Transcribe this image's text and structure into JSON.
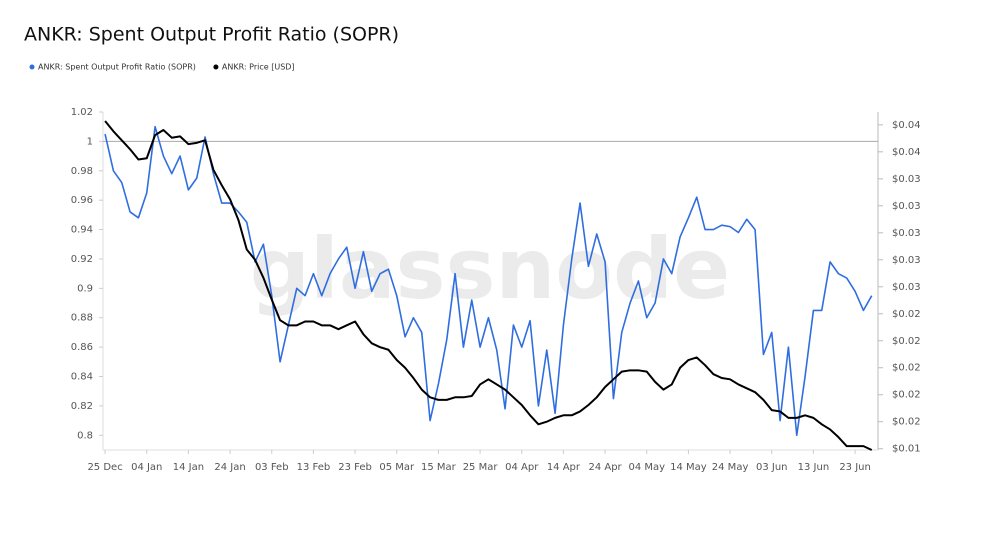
{
  "chart_data": {
    "type": "line",
    "title": "ANKR: Spent Output Profit Ratio (SOPR)",
    "watermark": "glassnode",
    "x": [
      0,
      2,
      4,
      6,
      8,
      10,
      12,
      14,
      16,
      18,
      20,
      22,
      24,
      26,
      28,
      30,
      32,
      34,
      36,
      38,
      40,
      42,
      44,
      46,
      48,
      50,
      52,
      54,
      56,
      58,
      60,
      62,
      64,
      66,
      68,
      70,
      72,
      74,
      76,
      78,
      80,
      82,
      84,
      86,
      88,
      90,
      92,
      94,
      96,
      98,
      100,
      102,
      104,
      106,
      108,
      110,
      112,
      114,
      116,
      118,
      120,
      122,
      124,
      126,
      128,
      130,
      132,
      134,
      136,
      138,
      140,
      142,
      144,
      146,
      148,
      150,
      152,
      154,
      156,
      158,
      160,
      162,
      164,
      166,
      168,
      170,
      172,
      174,
      176,
      178,
      180,
      182,
      184
    ],
    "xlim": [
      -0.5,
      185.5
    ],
    "xticks": [
      {
        "value": 0,
        "label": "25 Dec"
      },
      {
        "value": 10,
        "label": "04 Jan"
      },
      {
        "value": 20,
        "label": "14 Jan"
      },
      {
        "value": 30,
        "label": "24 Jan"
      },
      {
        "value": 40,
        "label": "03 Feb"
      },
      {
        "value": 50,
        "label": "13 Feb"
      },
      {
        "value": 60,
        "label": "23 Feb"
      },
      {
        "value": 70,
        "label": "05 Mar"
      },
      {
        "value": 80,
        "label": "15 Mar"
      },
      {
        "value": 90,
        "label": "25 Mar"
      },
      {
        "value": 100,
        "label": "04 Apr"
      },
      {
        "value": 110,
        "label": "14 Apr"
      },
      {
        "value": 120,
        "label": "24 Apr"
      },
      {
        "value": 130,
        "label": "04 May"
      },
      {
        "value": 140,
        "label": "14 May"
      },
      {
        "value": 150,
        "label": "24 May"
      },
      {
        "value": 160,
        "label": "03 Jun"
      },
      {
        "value": 170,
        "label": "13 Jun"
      },
      {
        "value": 180,
        "label": "23 Jun"
      }
    ],
    "ylim": [
      0.79,
      1.02
    ],
    "yticks": [
      0.8,
      0.82,
      0.84,
      0.86,
      0.88,
      0.9,
      0.92,
      0.94,
      0.96,
      0.98,
      1,
      1.02
    ],
    "reference_line": 1,
    "y2lim": [
      0.013,
      0.0393
    ],
    "y2ticks": [
      {
        "value": 0.0131,
        "label": "$0.01"
      },
      {
        "value": 0.0152,
        "label": "$0.02"
      },
      {
        "value": 0.0173,
        "label": "$0.02"
      },
      {
        "value": 0.0194,
        "label": "$0.02"
      },
      {
        "value": 0.0215,
        "label": "$0.02"
      },
      {
        "value": 0.0236,
        "label": "$0.02"
      },
      {
        "value": 0.0257,
        "label": "$0.03"
      },
      {
        "value": 0.0278,
        "label": "$0.03"
      },
      {
        "value": 0.0299,
        "label": "$0.03"
      },
      {
        "value": 0.032,
        "label": "$0.03"
      },
      {
        "value": 0.0341,
        "label": "$0.03"
      },
      {
        "value": 0.0362,
        "label": "$0.04"
      },
      {
        "value": 0.0383,
        "label": "$0.04"
      }
    ],
    "legend": "top-left",
    "series": [
      {
        "name": "ANKR: Spent Output Profit Ratio (SOPR)",
        "color": "#2f6ee0",
        "axis": "y",
        "values": [
          1.005,
          0.98,
          0.972,
          0.952,
          0.948,
          0.965,
          1.01,
          0.99,
          0.978,
          0.99,
          0.967,
          0.975,
          1.003,
          0.978,
          0.958,
          0.958,
          0.952,
          0.945,
          0.918,
          0.93,
          0.895,
          0.85,
          0.875,
          0.9,
          0.895,
          0.91,
          0.895,
          0.91,
          0.92,
          0.928,
          0.9,
          0.925,
          0.898,
          0.91,
          0.913,
          0.895,
          0.867,
          0.88,
          0.87,
          0.81,
          0.835,
          0.865,
          0.91,
          0.86,
          0.892,
          0.86,
          0.88,
          0.858,
          0.818,
          0.875,
          0.86,
          0.878,
          0.82,
          0.858,
          0.815,
          0.875,
          0.92,
          0.958,
          0.915,
          0.937,
          0.918,
          0.825,
          0.87,
          0.89,
          0.905,
          0.88,
          0.89,
          0.92,
          0.91,
          0.935,
          0.948,
          0.962,
          0.94,
          0.94,
          0.943,
          0.942,
          0.938,
          0.947,
          0.94,
          0.855,
          0.87,
          0.81,
          0.86,
          0.8,
          0.84,
          0.885,
          0.885,
          0.918,
          0.91,
          0.907,
          0.898,
          0.885,
          0.895
        ]
      },
      {
        "name": "ANKR: Price [USD]",
        "color": "#000000",
        "axis": "y2",
        "values": [
          0.0386,
          0.0378,
          0.0371,
          0.0364,
          0.0356,
          0.0357,
          0.0375,
          0.0379,
          0.0373,
          0.0374,
          0.0368,
          0.0369,
          0.0371,
          0.0348,
          0.0336,
          0.0325,
          0.0309,
          0.0286,
          0.0278,
          0.0264,
          0.0247,
          0.0231,
          0.0227,
          0.0227,
          0.023,
          0.023,
          0.0227,
          0.0227,
          0.0224,
          0.0227,
          0.023,
          0.022,
          0.0213,
          0.021,
          0.0208,
          0.02,
          0.0194,
          0.0186,
          0.0177,
          0.0171,
          0.0169,
          0.0169,
          0.0171,
          0.0171,
          0.0172,
          0.0181,
          0.0185,
          0.0181,
          0.0177,
          0.0171,
          0.0165,
          0.0157,
          0.015,
          0.0152,
          0.0155,
          0.0157,
          0.0157,
          0.016,
          0.0165,
          0.0171,
          0.0179,
          0.0185,
          0.0191,
          0.0192,
          0.0192,
          0.0191,
          0.0183,
          0.0177,
          0.0181,
          0.0194,
          0.02,
          0.0202,
          0.0196,
          0.0189,
          0.0186,
          0.0185,
          0.0181,
          0.0178,
          0.0175,
          0.0169,
          0.0161,
          0.016,
          0.0155,
          0.0155,
          0.0157,
          0.0155,
          0.015,
          0.0146,
          0.014,
          0.0133,
          0.0133,
          0.0133,
          0.013
        ]
      }
    ]
  }
}
